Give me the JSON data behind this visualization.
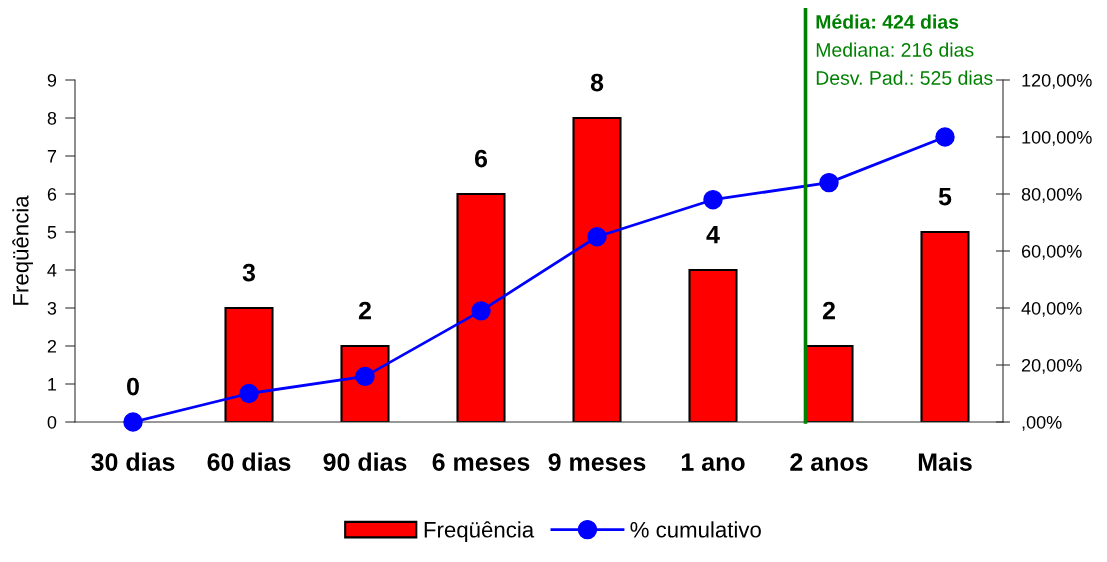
{
  "chart_data": {
    "type": "bar",
    "categories": [
      "30 dias",
      "60 dias",
      "90 dias",
      "6 meses",
      "9 meses",
      "1 ano",
      "2 anos",
      "Mais"
    ],
    "series": [
      {
        "name": "Freqüência",
        "color": "#ff0000",
        "values": [
          0,
          3,
          2,
          6,
          8,
          4,
          2,
          5
        ],
        "value_labels": [
          "0",
          "3",
          "2",
          "6",
          "8",
          "4",
          "2",
          "5"
        ]
      },
      {
        "name": "% cumulativo",
        "type": "line",
        "axis": "y2",
        "color": "#0000ff",
        "marker": "circle",
        "values": [
          0,
          10,
          16,
          39,
          65,
          78,
          84,
          100
        ]
      }
    ],
    "ylabel": "Freqüência",
    "ylim": [
      0,
      9
    ],
    "yticks": [
      0,
      1,
      2,
      3,
      4,
      5,
      6,
      7,
      8,
      9
    ],
    "y2lim": [
      0,
      120
    ],
    "y2ticks": [
      {
        "value": 0,
        "label": ",00%"
      },
      {
        "value": 20,
        "label": "20,00%"
      },
      {
        "value": 40,
        "label": "40,00%"
      },
      {
        "value": 60,
        "label": "60,00%"
      },
      {
        "value": 80,
        "label": "80,00%"
      },
      {
        "value": 100,
        "label": "100,00%"
      },
      {
        "value": 120,
        "label": "120,00%"
      }
    ],
    "ref_lines": [
      {
        "axis": "x",
        "value": "2 anos",
        "label": "Média: 424 dias",
        "color": "#008000"
      }
    ],
    "annotations": [
      "Mediana: 216 dias",
      "Desv. Pad.: 525 dias"
    ],
    "legend": "bottom",
    "grid": false
  }
}
